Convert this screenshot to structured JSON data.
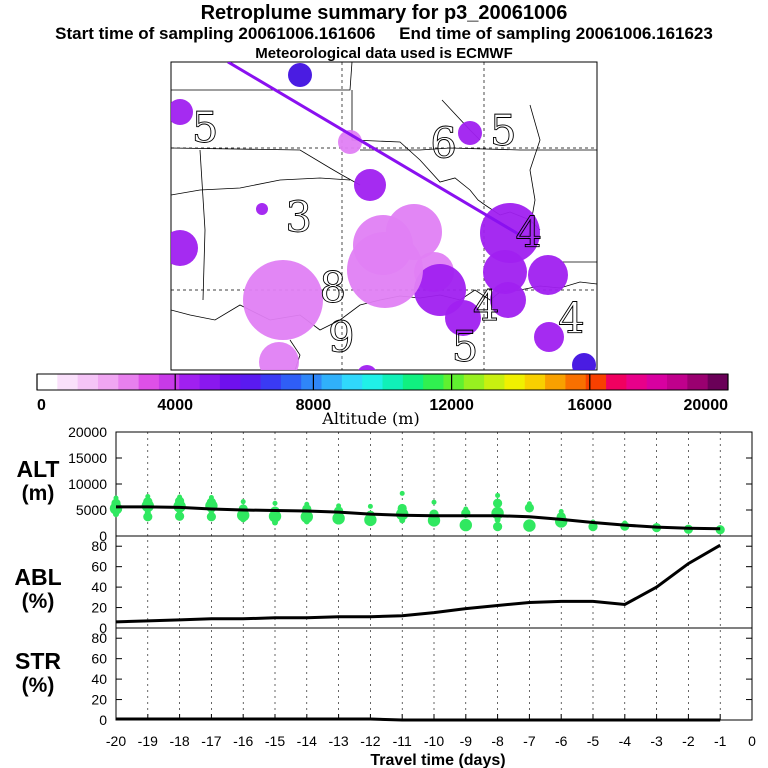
{
  "header": {
    "title": "Retroplume summary for p3_20061006",
    "start_label": "Start time of sampling 20061006.161606",
    "end_label": "End time of sampling 20061006.161623",
    "meteo": "Meteorological data used is ECMWF"
  },
  "colors": {
    "colorbar": [
      "#ffffff",
      "#fae0fb",
      "#f5c4f7",
      "#f0a6f2",
      "#e880ee",
      "#de50e8",
      "#c83ae8",
      "#a020f0",
      "#8a18ef",
      "#6f10ee",
      "#5a1af0",
      "#3a3af4",
      "#2f5ef6",
      "#2f86f8",
      "#30b0fa",
      "#30d8fc",
      "#20f0e8",
      "#10f0b8",
      "#10f080",
      "#30f050",
      "#60f030",
      "#98f020",
      "#c8f010",
      "#f0f000",
      "#f8d000",
      "#f8a000",
      "#f87000",
      "#f84000",
      "#f00060",
      "#e8008a",
      "#d800a0",
      "#c0008c",
      "#9a0070",
      "#6a0058"
    ],
    "plume_light": "#e080f4",
    "plume_mid": "#a020f0",
    "plume_dark": "#4010e0",
    "track_line": "#8a10f0",
    "dots": "#30e860"
  },
  "map": {
    "digits": [
      {
        "t": "3",
        "x": 30,
        "y": 55
      },
      {
        "t": "5",
        "x": 8,
        "y": 26
      },
      {
        "t": "8",
        "x": 38,
        "y": 78
      },
      {
        "t": "6",
        "x": 64,
        "y": 31
      },
      {
        "t": "5",
        "x": 78,
        "y": 27
      },
      {
        "t": "4",
        "x": 84,
        "y": 60
      },
      {
        "t": "9",
        "x": 40,
        "y": 94
      },
      {
        "t": "5",
        "x": 69,
        "y": 97
      },
      {
        "t": "4",
        "x": 94,
        "y": 88
      },
      {
        "t": "4",
        "x": 74,
        "y": 84
      }
    ]
  },
  "colorbar": {
    "ticks": [
      "0",
      "4000",
      "8000",
      "12000",
      "16000",
      "20000"
    ],
    "xlabel": "Altitude (m)"
  },
  "panels": {
    "alt": {
      "name": "ALT",
      "unit": "(m)",
      "ticks": [
        "0",
        "5000",
        "10000",
        "15000",
        "20000"
      ]
    },
    "abl": {
      "name": "ABL",
      "unit": "(%)",
      "ticks": [
        "0",
        "20",
        "40",
        "60",
        "80"
      ]
    },
    "str": {
      "name": "STR",
      "unit": "(%)",
      "ticks": [
        "0",
        "20",
        "40",
        "60",
        "80"
      ]
    }
  },
  "xaxis": {
    "ticks": [
      "-20",
      "-19",
      "-18",
      "-17",
      "-16",
      "-15",
      "-14",
      "-13",
      "-12",
      "-11",
      "-10",
      "-9",
      "-8",
      "-7",
      "-6",
      "-5",
      "-4",
      "-3",
      "-2",
      "-1",
      "0"
    ],
    "label": "Travel time (days)"
  },
  "chart_data": [
    {
      "type": "line",
      "title": "ALT",
      "ylabel": "ALT (m)",
      "xlabel": "Travel time (days)",
      "xlim": [
        -20,
        0
      ],
      "ylim": [
        0,
        20000
      ],
      "x": [
        -20,
        -19,
        -18,
        -17,
        -16,
        -15,
        -14,
        -13,
        -12,
        -11,
        -10,
        -9,
        -8,
        -7,
        -6,
        -5,
        -4,
        -3,
        -2,
        -1
      ],
      "mean": [
        5600,
        5600,
        5500,
        5200,
        5000,
        4900,
        4800,
        4600,
        4200,
        4000,
        3900,
        3900,
        3900,
        3700,
        3200,
        2600,
        2100,
        1700,
        1500,
        1400
      ],
      "scatter": [
        {
          "x": -20,
          "y": [
            7300,
            6300,
            5300,
            4200
          ]
        },
        {
          "x": -19,
          "y": [
            7600,
            6600,
            5800,
            4600,
            3700
          ]
        },
        {
          "x": -18,
          "y": [
            7500,
            6700,
            5700,
            4800,
            3800
          ]
        },
        {
          "x": -17,
          "y": [
            7400,
            6500,
            5800,
            4800,
            3700
          ]
        },
        {
          "x": -16,
          "y": [
            6600,
            5200,
            4000,
            3200
          ]
        },
        {
          "x": -15,
          "y": [
            6300,
            4800,
            3800,
            2600
          ]
        },
        {
          "x": -14,
          "y": [
            6100,
            5200,
            3700,
            2800
          ]
        },
        {
          "x": -13,
          "y": [
            5800,
            4800,
            3400
          ]
        },
        {
          "x": -12,
          "y": [
            5700,
            4000,
            3100
          ]
        },
        {
          "x": -11,
          "y": [
            8200,
            5300,
            4200,
            3000
          ]
        },
        {
          "x": -10,
          "y": [
            6500,
            4200,
            3000
          ]
        },
        {
          "x": -9,
          "y": [
            5200,
            4400,
            2100
          ]
        },
        {
          "x": -8,
          "y": [
            7800,
            6300,
            4400,
            3100,
            1800
          ]
        },
        {
          "x": -7,
          "y": [
            6200,
            5400,
            2000
          ]
        },
        {
          "x": -6,
          "y": [
            4700,
            3700,
            2800
          ]
        },
        {
          "x": -5,
          "y": [
            2700,
            1800
          ]
        },
        {
          "x": -4,
          "y": [
            2500,
            1900
          ]
        },
        {
          "x": -3,
          "y": [
            2000,
            1600
          ]
        },
        {
          "x": -2,
          "y": [
            1600,
            1300
          ]
        },
        {
          "x": -1,
          "y": [
            1500,
            1200
          ]
        }
      ]
    },
    {
      "type": "line",
      "title": "ABL",
      "ylabel": "ABL (%)",
      "xlabel": "Travel time (days)",
      "xlim": [
        -20,
        0
      ],
      "ylim": [
        0,
        90
      ],
      "x": [
        -20,
        -19,
        -18,
        -17,
        -16,
        -15,
        -14,
        -13,
        -12,
        -11,
        -10,
        -9,
        -8,
        -7,
        -6,
        -5,
        -4,
        -3,
        -2,
        -1
      ],
      "values": [
        6,
        7,
        8,
        9,
        9,
        10,
        10,
        11,
        11,
        12,
        15,
        19,
        22,
        25,
        26,
        26,
        23,
        40,
        63,
        81
      ]
    },
    {
      "type": "line",
      "title": "STR",
      "ylabel": "STR (%)",
      "xlabel": "Travel time (days)",
      "xlim": [
        -20,
        0
      ],
      "ylim": [
        0,
        90
      ],
      "x": [
        -20,
        -19,
        -18,
        -17,
        -16,
        -15,
        -14,
        -13,
        -12,
        -11,
        -10,
        -9,
        -8,
        -7,
        -6,
        -5,
        -4,
        -3,
        -2,
        -1
      ],
      "values": [
        1,
        1,
        1,
        1,
        1,
        1,
        1,
        1,
        1,
        0,
        0,
        0,
        0,
        0,
        0,
        0,
        0,
        0,
        0,
        0
      ]
    }
  ]
}
